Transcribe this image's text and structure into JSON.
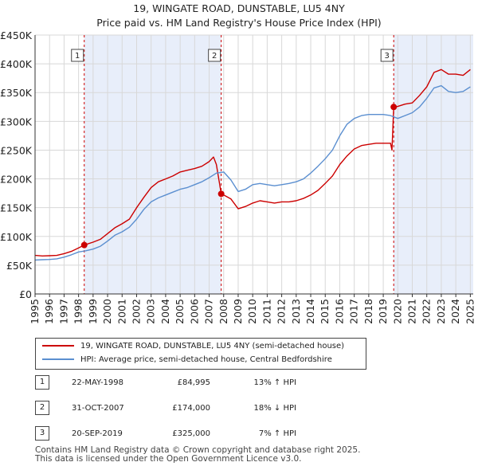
{
  "title_line1": "19, WINGATE ROAD, DUNSTABLE, LU5 4NY",
  "title_line2": "Price paid vs. HM Land Registry's House Price Index (HPI)",
  "colors": {
    "property_line": "#cc0000",
    "hpi_line": "#5b8fd0",
    "shade": "#e8eefa",
    "marker_line": "#cc0000",
    "grid": "#d8d8d8",
    "axis": "#333333"
  },
  "chart_data": {
    "type": "line",
    "xlabel": "",
    "ylabel": "",
    "xlim": [
      1995.0,
      2025.2
    ],
    "ylim": [
      0,
      450000
    ],
    "y_ticks": [
      {
        "value": 0,
        "label": "£0"
      },
      {
        "value": 50000,
        "label": "£50K"
      },
      {
        "value": 100000,
        "label": "£100K"
      },
      {
        "value": 150000,
        "label": "£150K"
      },
      {
        "value": 200000,
        "label": "£200K"
      },
      {
        "value": 250000,
        "label": "£250K"
      },
      {
        "value": 300000,
        "label": "£300K"
      },
      {
        "value": 350000,
        "label": "£350K"
      },
      {
        "value": 400000,
        "label": "£400K"
      },
      {
        "value": 450000,
        "label": "£450K"
      }
    ],
    "x_ticks": [
      "1995",
      "1996",
      "1997",
      "1998",
      "1999",
      "2000",
      "2001",
      "2002",
      "2003",
      "2004",
      "2005",
      "2006",
      "2007",
      "2008",
      "2009",
      "2010",
      "2011",
      "2012",
      "2013",
      "2014",
      "2015",
      "2016",
      "2017",
      "2018",
      "2019",
      "2020",
      "2021",
      "2022",
      "2023",
      "2024",
      "2025"
    ],
    "series": [
      {
        "name": "19, WINGATE ROAD, DUNSTABLE, LU5 4NY (semi-detached house)",
        "color": "#cc0000",
        "x": [
          1995.0,
          1995.5,
          1996.0,
          1996.5,
          1997.0,
          1997.5,
          1998.0,
          1998.39,
          1998.5,
          1999.0,
          1999.5,
          2000.0,
          2000.5,
          2001.0,
          2001.5,
          2002.0,
          2002.5,
          2003.0,
          2003.5,
          2004.0,
          2004.5,
          2005.0,
          2005.5,
          2006.0,
          2006.5,
          2007.0,
          2007.3,
          2007.5,
          2007.83,
          2008.0,
          2008.5,
          2009.0,
          2009.5,
          2010.0,
          2010.5,
          2011.0,
          2011.5,
          2012.0,
          2012.5,
          2013.0,
          2013.5,
          2014.0,
          2014.5,
          2015.0,
          2015.5,
          2016.0,
          2016.5,
          2017.0,
          2017.5,
          2018.0,
          2018.5,
          2019.0,
          2019.5,
          2019.6,
          2019.72,
          2020.0,
          2020.5,
          2021.0,
          2021.5,
          2022.0,
          2022.5,
          2023.0,
          2023.5,
          2024.0,
          2024.5,
          2025.0
        ],
        "values": [
          67000,
          66000,
          66500,
          67000,
          70000,
          74000,
          80000,
          84995,
          86000,
          90000,
          95000,
          105000,
          115000,
          122000,
          130000,
          150000,
          168000,
          185000,
          195000,
          200000,
          205000,
          212000,
          215000,
          218000,
          222000,
          230000,
          238000,
          225000,
          174000,
          172000,
          165000,
          148000,
          152000,
          158000,
          162000,
          160000,
          158000,
          160000,
          160000,
          162000,
          166000,
          172000,
          180000,
          192000,
          205000,
          225000,
          240000,
          252000,
          258000,
          260000,
          262000,
          262000,
          262000,
          250000,
          325000,
          326000,
          330000,
          332000,
          345000,
          360000,
          385000,
          390000,
          382000,
          382000,
          380000,
          390000
        ]
      },
      {
        "name": "HPI: Average price, semi-detached house, Central Bedfordshire",
        "color": "#5b8fd0",
        "x": [
          1995.0,
          1995.5,
          1996.0,
          1996.5,
          1997.0,
          1997.5,
          1998.0,
          1998.5,
          1999.0,
          1999.5,
          2000.0,
          2000.5,
          2001.0,
          2001.5,
          2002.0,
          2002.5,
          2003.0,
          2003.5,
          2004.0,
          2004.5,
          2005.0,
          2005.5,
          2006.0,
          2006.5,
          2007.0,
          2007.5,
          2008.0,
          2008.5,
          2009.0,
          2009.5,
          2010.0,
          2010.5,
          2011.0,
          2011.5,
          2012.0,
          2012.5,
          2013.0,
          2013.5,
          2014.0,
          2014.5,
          2015.0,
          2015.5,
          2016.0,
          2016.5,
          2017.0,
          2017.5,
          2018.0,
          2018.5,
          2019.0,
          2019.5,
          2020.0,
          2020.5,
          2021.0,
          2021.5,
          2022.0,
          2022.5,
          2023.0,
          2023.5,
          2024.0,
          2024.5,
          2025.0
        ],
        "values": [
          59000,
          59500,
          60000,
          61000,
          64000,
          68000,
          73000,
          75000,
          78000,
          83000,
          92000,
          102000,
          108000,
          116000,
          130000,
          147000,
          160000,
          167000,
          172000,
          177000,
          182000,
          185000,
          190000,
          195000,
          202000,
          210000,
          212000,
          198000,
          178000,
          182000,
          190000,
          192000,
          190000,
          188000,
          190000,
          192000,
          195000,
          200000,
          210000,
          222000,
          235000,
          250000,
          275000,
          295000,
          305000,
          310000,
          312000,
          312000,
          312000,
          310000,
          305000,
          310000,
          315000,
          325000,
          340000,
          358000,
          362000,
          352000,
          350000,
          352000,
          360000
        ]
      }
    ],
    "sales": [
      {
        "num": "1",
        "x": 1998.39,
        "price": 84995,
        "date": "22-MAY-1998",
        "price_label": "£84,995",
        "hpi": "13% ↑ HPI"
      },
      {
        "num": "2",
        "x": 2007.83,
        "price": 174000,
        "date": "31-OCT-2007",
        "price_label": "£174,000",
        "hpi": "18% ↓ HPI"
      },
      {
        "num": "3",
        "x": 2019.72,
        "price": 325000,
        "date": "20-SEP-2019",
        "price_label": "£325,000",
        "hpi": "7% ↑ HPI"
      }
    ]
  },
  "legend": {
    "property_label": "19, WINGATE ROAD, DUNSTABLE, LU5 4NY (semi-detached house)",
    "hpi_label": "HPI: Average price, semi-detached house, Central Bedfordshire"
  },
  "footer": "Contains HM Land Registry data © Crown copyright and database right 2025.\nThis data is licensed under the Open Government Licence v3.0."
}
